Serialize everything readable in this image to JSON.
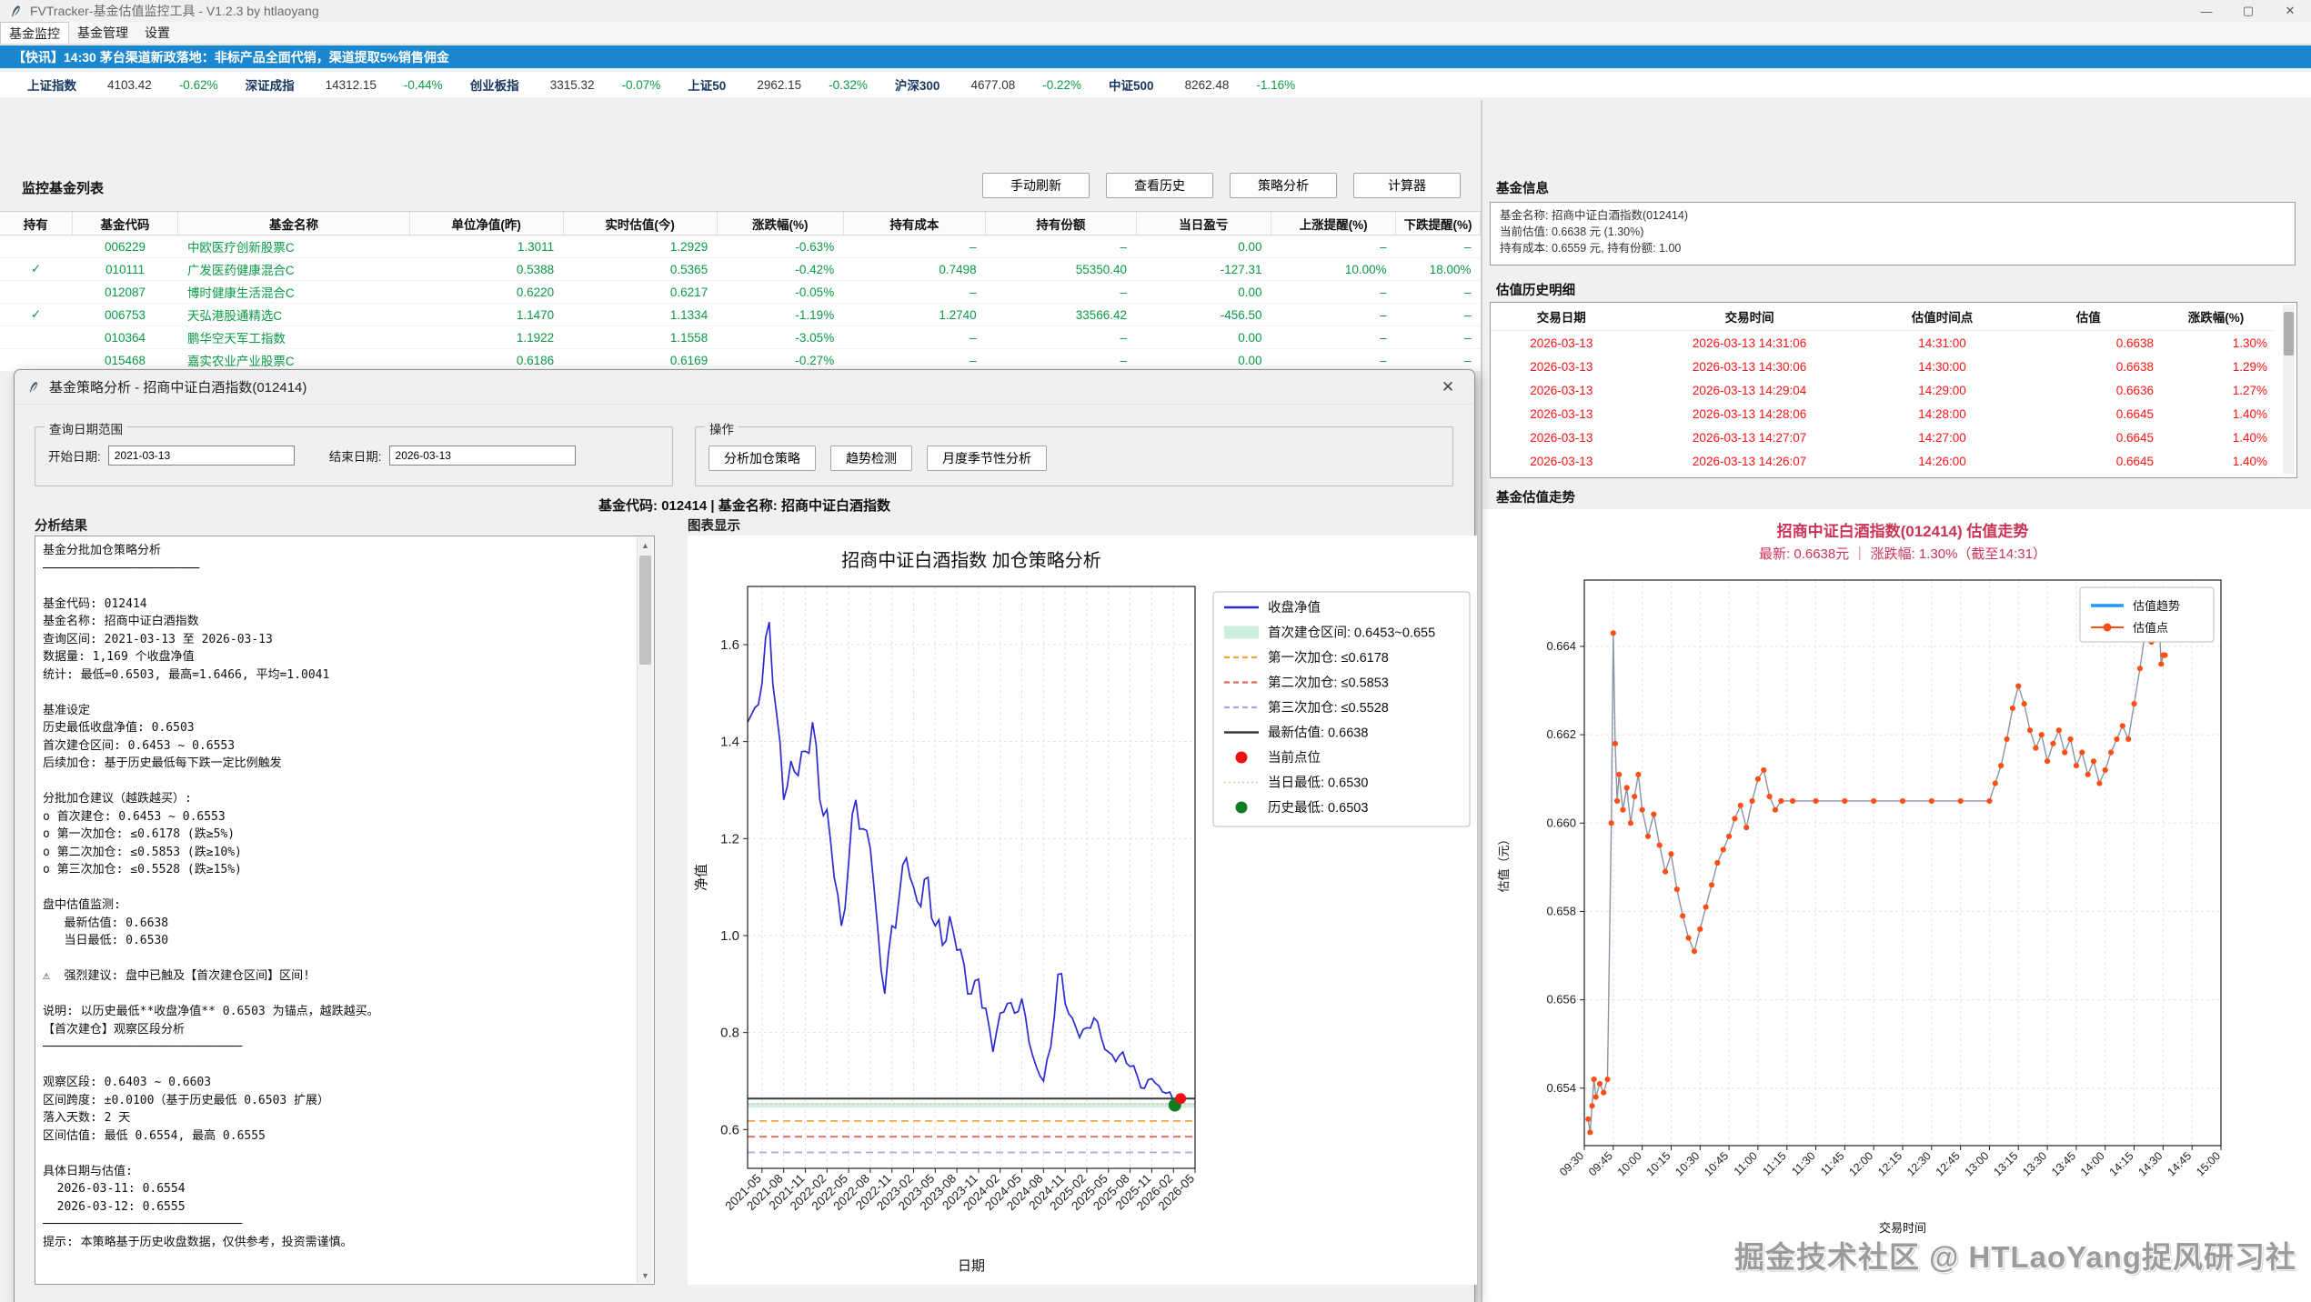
{
  "window": {
    "title": "FVTracker-基金估值监控工具 - V1.2.3   by htlaoyang",
    "menus": [
      "基金监控",
      "基金管理",
      "设置"
    ],
    "controls": {
      "minimize": "—",
      "maximize": "▢",
      "close": "✕"
    }
  },
  "news_ticker": "【快讯】14:30 茅台渠道新政落地：非标产品全面代销，渠道提取5%销售佣金",
  "indices": [
    {
      "name": "上证指数",
      "value": "4103.42",
      "change": "-0.62%"
    },
    {
      "name": "深证成指",
      "value": "14312.15",
      "change": "-0.44%"
    },
    {
      "name": "创业板指",
      "value": "3315.32",
      "change": "-0.07%"
    },
    {
      "name": "上证50",
      "value": "2962.15",
      "change": "-0.32%"
    },
    {
      "name": "沪深300",
      "value": "4677.08",
      "change": "-0.22%"
    },
    {
      "name": "中证500",
      "value": "8262.48",
      "change": "-1.16%"
    }
  ],
  "watchlist": {
    "title": "监控基金列表",
    "buttons": [
      "手动刷新",
      "查看历史",
      "策略分析",
      "计算器"
    ],
    "columns": [
      "持有",
      "基金代码",
      "基金名称",
      "单位净值(昨)",
      "实时估值(今)",
      "涨跌幅(%)",
      "持有成本",
      "持有份额",
      "当日盈亏",
      "上涨提醒(%)",
      "下跌提醒(%)"
    ],
    "rows": [
      {
        "held": "",
        "code": "006229",
        "name": "中欧医疗创新股票C",
        "nav": "1.3011",
        "est": "1.2929",
        "chg": "-0.63%",
        "cost": "–",
        "shares": "–",
        "pnl": "0.00",
        "up": "–",
        "down": "–"
      },
      {
        "held": "✓",
        "code": "010111",
        "name": "广发医药健康混合C",
        "nav": "0.5388",
        "est": "0.5365",
        "chg": "-0.42%",
        "cost": "0.7498",
        "shares": "55350.40",
        "pnl": "-127.31",
        "up": "10.00%",
        "down": "18.00%"
      },
      {
        "held": "",
        "code": "012087",
        "name": "博时健康生活混合C",
        "nav": "0.6220",
        "est": "0.6217",
        "chg": "-0.05%",
        "cost": "–",
        "shares": "–",
        "pnl": "0.00",
        "up": "–",
        "down": "–"
      },
      {
        "held": "✓",
        "code": "006753",
        "name": "天弘港股通精选C",
        "nav": "1.1470",
        "est": "1.1334",
        "chg": "-1.19%",
        "cost": "1.2740",
        "shares": "33566.42",
        "pnl": "-456.50",
        "up": "–",
        "down": "–"
      },
      {
        "held": "",
        "code": "010364",
        "name": "鹏华空天军工指数",
        "nav": "1.1922",
        "est": "1.1558",
        "chg": "-3.05%",
        "cost": "–",
        "shares": "–",
        "pnl": "0.00",
        "up": "–",
        "down": "–"
      },
      {
        "held": "",
        "code": "015468",
        "name": "嘉实农业产业股票C",
        "nav": "0.6186",
        "est": "0.6169",
        "chg": "-0.27%",
        "cost": "–",
        "shares": "–",
        "pnl": "0.00",
        "up": "–",
        "down": "–"
      }
    ]
  },
  "right_panel": {
    "fund_info_title": "基金信息",
    "fund_info_lines": [
      "基金名称: 招商中证白酒指数(012414)",
      "当前估值: 0.6638 元 (1.30%)",
      "持有成本: 0.6559 元, 持有份额: 1.00"
    ],
    "history_title": "估值历史明细",
    "history_columns": [
      "交易日期",
      "交易时间",
      "估值时间点",
      "估值",
      "涨跌幅(%)"
    ],
    "history_rows": [
      [
        "2026-03-13",
        "2026-03-13 14:31:06",
        "14:31:00",
        "0.6638",
        "1.30%"
      ],
      [
        "2026-03-13",
        "2026-03-13 14:30:06",
        "14:30:00",
        "0.6638",
        "1.29%"
      ],
      [
        "2026-03-13",
        "2026-03-13 14:29:04",
        "14:29:00",
        "0.6636",
        "1.27%"
      ],
      [
        "2026-03-13",
        "2026-03-13 14:28:06",
        "14:28:00",
        "0.6645",
        "1.40%"
      ],
      [
        "2026-03-13",
        "2026-03-13 14:27:07",
        "14:27:00",
        "0.6645",
        "1.40%"
      ],
      [
        "2026-03-13",
        "2026-03-13 14:26:07",
        "14:26:00",
        "0.6645",
        "1.40%"
      ]
    ],
    "trend_title": "基金估值走势",
    "watermark": "掘金技术社区 @ HTLaoYang捉风研习社"
  },
  "modal": {
    "title": "基金策略分析 - 招商中证白酒指数(012414)",
    "close_label": "✕",
    "date_group": {
      "label": "查询日期范围",
      "start_label": "开始日期:",
      "start_value": "2021-03-13",
      "end_label": "结束日期:",
      "end_value": "2026-03-13"
    },
    "ops_group": {
      "label": "操作",
      "buttons": [
        "分析加仓策略",
        "趋势检测",
        "月度季节性分析"
      ]
    },
    "fund_line": "基金代码: 012414 | 基金名称: 招商中证白酒指数",
    "analysis_label": "分析结果",
    "chart_label": "图表显示",
    "analysis_lines": [
      "基金分批加仓策略分析",
      "──────────────────────",
      "",
      "基金代码: 012414",
      "基金名称: 招商中证白酒指数",
      "查询区间: 2021-03-13 至 2026-03-13",
      "数据量: 1,169 个收盘净值",
      "统计: 最低=0.6503, 最高=1.6466, 平均=1.0041",
      "",
      "基准设定",
      "历史最低收盘净值: 0.6503",
      "首次建仓区间: 0.6453 ~ 0.6553",
      "后续加仓: 基于历史最低每下跌一定比例触发",
      "",
      "分批加仓建议（越跌越买）:",
      "o 首次建仓: 0.6453 ~ 0.6553",
      "o 第一次加仓: ≤0.6178 (跌≥5%)",
      "o 第二次加仓: ≤0.5853 (跌≥10%)",
      "o 第三次加仓: ≤0.5528 (跌≥15%)",
      "",
      "盘中估值监测:",
      "   最新估值: 0.6638",
      "   当日最低: 0.6530",
      "",
      "⚠  强烈建议: 盘中已触及【首次建仓区间】区间!",
      "",
      "说明: 以历史最低**收盘净值** 0.6503 为锚点，越跌越买。",
      "【首次建仓】观察区段分析",
      "────────────────────────────",
      "",
      "观察区段: 0.6403 ~ 0.6603",
      "区间跨度: ±0.0100（基于历史最低 0.6503 扩展）",
      "落入天数: 2 天",
      "区间估值: 最低 0.6554, 最高 0.6555",
      "",
      "具体日期与估值:",
      "  2026-03-11: 0.6554",
      "  2026-03-12: 0.6555",
      "────────────────────────────",
      "提示: 本策略基于历史收盘数据，仅供参考，投资需谨慎。"
    ]
  },
  "chart_data": [
    {
      "id": "strategy",
      "type": "line",
      "title": "招商中证白酒指数  加仓策略分析",
      "xlabel": "日期",
      "ylabel": "净值",
      "ylim": [
        0.52,
        1.72
      ],
      "yticks": [
        0.6,
        0.8,
        1.0,
        1.2,
        1.4,
        1.6
      ],
      "xticks": [
        "2021-05",
        "2021-08",
        "2021-11",
        "2022-02",
        "2022-05",
        "2022-08",
        "2022-11",
        "2023-02",
        "2023-05",
        "2023-08",
        "2023-11",
        "2024-02",
        "2024-05",
        "2024-08",
        "2024-11",
        "2025-02",
        "2025-05",
        "2025-08",
        "2025-11",
        "2026-02",
        "2026-05"
      ],
      "series_name": "收盘净值",
      "values": [
        1.44,
        1.47,
        1.52,
        1.6466,
        1.46,
        1.28,
        1.36,
        1.33,
        1.38,
        1.44,
        1.28,
        1.26,
        1.12,
        1.02,
        1.15,
        1.28,
        1.22,
        1.18,
        1.02,
        0.88,
        1.02,
        1.08,
        1.16,
        1.1,
        1.06,
        1.12,
        1.02,
        0.98,
        1.04,
        0.97,
        0.94,
        0.88,
        0.91,
        0.85,
        0.76,
        0.84,
        0.86,
        0.84,
        0.87,
        0.78,
        0.73,
        0.7,
        0.77,
        0.92,
        0.86,
        0.83,
        0.79,
        0.81,
        0.83,
        0.79,
        0.76,
        0.74,
        0.76,
        0.73,
        0.71,
        0.685,
        0.705,
        0.69,
        0.675,
        0.66,
        0.6638
      ],
      "levels": {
        "band_low": 0.6453,
        "band_high": 0.6553,
        "add1": 0.6178,
        "add2": 0.5853,
        "add3": 0.5528,
        "latest": 0.6638,
        "day_low": 0.653,
        "hist_low": 0.6503
      },
      "legend": [
        {
          "type": "line",
          "color": "#2b2bd4",
          "label": "收盘净值"
        },
        {
          "type": "fill",
          "color": "#cdeedd",
          "label": "首次建仓区间: 0.6453~0.655"
        },
        {
          "type": "dash",
          "color": "#f3a83b",
          "label": "第一次加仓: ≤0.6178"
        },
        {
          "type": "dash",
          "color": "#e0685c",
          "label": "第二次加仓: ≤0.5853"
        },
        {
          "type": "dash",
          "color": "#b79fe2",
          "label": "第三次加仓: ≤0.5528"
        },
        {
          "type": "line",
          "color": "#3a3a3a",
          "label": "最新估值: 0.6638"
        },
        {
          "type": "dot",
          "color": "#ee1111",
          "label": "当前点位"
        },
        {
          "type": "dotline",
          "color": "#f4b8a4",
          "label": "当日最低: 0.6530"
        },
        {
          "type": "dot",
          "color": "#0d7d22",
          "label": "历史最低: 0.6503"
        }
      ]
    },
    {
      "id": "trend",
      "type": "line-scatter",
      "title": "招商中证白酒指数(012414) 估值走势",
      "subtitle": "最新: 0.6638元 ｜ 涨跌幅: 1.30%（截至14:31）",
      "xlabel": "交易时间",
      "ylabel": "估值（元）",
      "ylim": [
        0.6527,
        0.6655
      ],
      "yticks": [
        0.654,
        0.656,
        0.658,
        0.66,
        0.662,
        0.664
      ],
      "xticks": [
        "09:30",
        "09:45",
        "10:00",
        "10:15",
        "10:30",
        "10:45",
        "11:00",
        "11:15",
        "11:30",
        "11:45",
        "12:00",
        "12:15",
        "12:30",
        "12:45",
        "13:00",
        "13:15",
        "13:30",
        "13:45",
        "14:00",
        "14:15",
        "14:30",
        "14:45",
        "15:00"
      ],
      "legend": [
        "估值趋势",
        "估值点"
      ],
      "points": [
        [
          2,
          0.6533
        ],
        [
          3,
          0.653
        ],
        [
          4,
          0.6536
        ],
        [
          5,
          0.6542
        ],
        [
          6,
          0.6538
        ],
        [
          8,
          0.6541
        ],
        [
          10,
          0.6539
        ],
        [
          12,
          0.6542
        ],
        [
          14,
          0.66
        ],
        [
          15,
          0.6643
        ],
        [
          16,
          0.6618
        ],
        [
          17,
          0.6605
        ],
        [
          18,
          0.6611
        ],
        [
          20,
          0.6603
        ],
        [
          22,
          0.6608
        ],
        [
          24,
          0.66
        ],
        [
          26,
          0.6606
        ],
        [
          28,
          0.6611
        ],
        [
          30,
          0.6603
        ],
        [
          33,
          0.6597
        ],
        [
          36,
          0.6602
        ],
        [
          39,
          0.6595
        ],
        [
          42,
          0.6589
        ],
        [
          45,
          0.6593
        ],
        [
          48,
          0.6585
        ],
        [
          51,
          0.6579
        ],
        [
          54,
          0.6574
        ],
        [
          57,
          0.6571
        ],
        [
          60,
          0.6576
        ],
        [
          63,
          0.6581
        ],
        [
          66,
          0.6586
        ],
        [
          69,
          0.6591
        ],
        [
          72,
          0.6594
        ],
        [
          75,
          0.6597
        ],
        [
          78,
          0.6601
        ],
        [
          81,
          0.6604
        ],
        [
          84,
          0.6599
        ],
        [
          87,
          0.6605
        ],
        [
          90,
          0.661
        ],
        [
          93,
          0.6612
        ],
        [
          96,
          0.6606
        ],
        [
          99,
          0.6603
        ],
        [
          102,
          0.6605
        ],
        [
          108,
          0.6605
        ],
        [
          120,
          0.6605
        ],
        [
          135,
          0.6605
        ],
        [
          150,
          0.6605
        ],
        [
          165,
          0.6605
        ],
        [
          180,
          0.6605
        ],
        [
          195,
          0.6605
        ],
        [
          210,
          0.6605
        ],
        [
          213,
          0.6609
        ],
        [
          216,
          0.6613
        ],
        [
          219,
          0.6619
        ],
        [
          222,
          0.6626
        ],
        [
          225,
          0.6631
        ],
        [
          228,
          0.6627
        ],
        [
          231,
          0.6621
        ],
        [
          234,
          0.6617
        ],
        [
          237,
          0.662
        ],
        [
          240,
          0.6614
        ],
        [
          243,
          0.6618
        ],
        [
          246,
          0.6621
        ],
        [
          249,
          0.6616
        ],
        [
          252,
          0.6619
        ],
        [
          255,
          0.6613
        ],
        [
          258,
          0.6616
        ],
        [
          261,
          0.6611
        ],
        [
          264,
          0.6614
        ],
        [
          267,
          0.6609
        ],
        [
          270,
          0.6612
        ],
        [
          273,
          0.6616
        ],
        [
          276,
          0.6619
        ],
        [
          279,
          0.6622
        ],
        [
          282,
          0.6619
        ],
        [
          285,
          0.6627
        ],
        [
          288,
          0.6635
        ],
        [
          291,
          0.6644
        ],
        [
          294,
          0.6641
        ],
        [
          296,
          0.6645
        ],
        [
          298,
          0.6645
        ],
        [
          299,
          0.6636
        ],
        [
          300,
          0.6638
        ],
        [
          301,
          0.6638
        ]
      ]
    }
  ]
}
